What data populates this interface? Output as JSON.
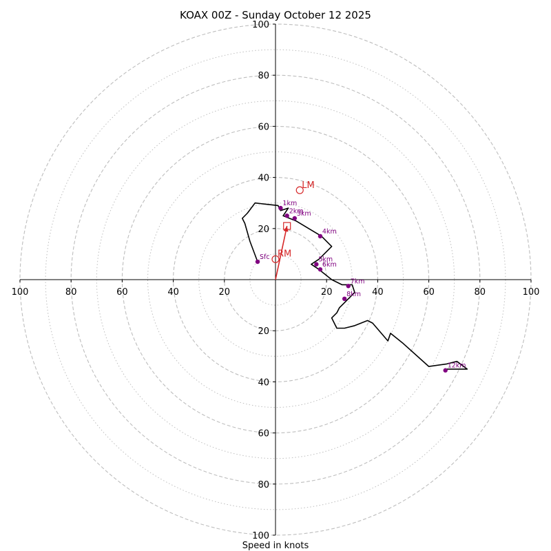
{
  "chart_data": {
    "type": "line",
    "title": "KOAX 00Z - Sunday October 12 2025",
    "xlabel": "Speed in knots",
    "ylabel": "",
    "xlim": [
      -100,
      100
    ],
    "ylim": [
      -100,
      100
    ],
    "grid": true,
    "rings_major": [
      20,
      40,
      60,
      80,
      100
    ],
    "rings_minor": [
      10,
      30,
      50,
      70,
      90
    ],
    "tick_labels": {
      "x_left": [
        "100",
        "80",
        "60",
        "40",
        "20"
      ],
      "x_right": [
        "20",
        "40",
        "60",
        "80",
        "100"
      ],
      "y_top": [
        "100",
        "80",
        "60",
        "40",
        "20"
      ],
      "y_bottom": [
        "20",
        "40",
        "60",
        "80",
        "100"
      ]
    },
    "hodograph": {
      "x": [
        -7,
        -10,
        -12,
        -13,
        -11,
        -8,
        1,
        2,
        5,
        3,
        8,
        13,
        18,
        20,
        22,
        19,
        17,
        14,
        17,
        22,
        26,
        30,
        31,
        28,
        27,
        25,
        24,
        22,
        24,
        27,
        31,
        36,
        38,
        44,
        45,
        50,
        60,
        67,
        71,
        75,
        67
      ],
      "y": [
        7,
        15,
        22,
        24,
        26,
        30,
        29,
        27,
        28,
        25,
        23,
        20,
        17,
        15,
        13,
        10,
        8,
        6,
        4,
        0,
        -2,
        -2,
        -5,
        -8,
        -9,
        -11,
        -13,
        -15,
        -19,
        -19,
        -18,
        -16,
        -17,
        -24,
        -21,
        -25,
        -34,
        -33,
        -32,
        -35,
        -35
      ]
    },
    "height_markers": [
      {
        "label": "Sfc",
        "x": -7,
        "y": 7
      },
      {
        "label": "1km",
        "x": 2,
        "y": 28
      },
      {
        "label": "2km",
        "x": 4.5,
        "y": 25
      },
      {
        "label": "3km",
        "x": 7.5,
        "y": 24
      },
      {
        "label": "4km",
        "x": 17.5,
        "y": 17
      },
      {
        "label": "5km",
        "x": 16,
        "y": 6
      },
      {
        "label": "6km",
        "x": 17.5,
        "y": 4
      },
      {
        "label": "7km",
        "x": 28.5,
        "y": -2.5
      },
      {
        "label": "8km",
        "x": 27,
        "y": -7.5
      },
      {
        "label": "12km",
        "x": 66.5,
        "y": -35.5
      }
    ],
    "storm_motion": {
      "rm": {
        "label": "RM",
        "x": 0,
        "y": 8
      },
      "lm": {
        "label": "LM",
        "x": 9.5,
        "y": 35
      },
      "mean_wind": {
        "x": 4.5,
        "y": 21
      },
      "vector": {
        "x": 4.5,
        "y": 21
      }
    },
    "colors": {
      "trace": "#000000",
      "markers": "#800080",
      "storm": "#d62728",
      "grid": "#bdbdbd",
      "axes": "#000000"
    }
  }
}
